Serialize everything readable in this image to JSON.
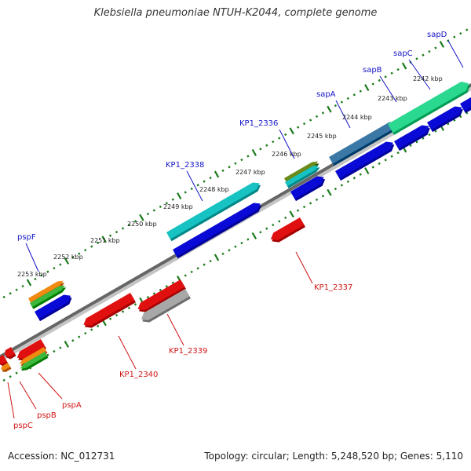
{
  "title": "Klebsiella pneumoniae NTUH-K2044, complete genome",
  "footer": {
    "accession": "Accession: NC_012731",
    "summary": "Topology: circular; Length: 5,248,520 bp; Genes: 5,110"
  },
  "ticks": [
    "2242 kbp",
    "2243 kbp",
    "2244 kbp",
    "2245 kbp",
    "2246 kbp",
    "2247 kbp",
    "2248 kbp",
    "2249 kbp",
    "2250 kbp",
    "2251 kbp",
    "2252 kbp",
    "2253 kbp"
  ],
  "colors": {
    "plus_label": "#1515c8",
    "minus_label": "#d01515",
    "cds_blue": "#0a0ad6",
    "cds_red": "#e01010",
    "cds_gray": "#a8a8a8",
    "backbone": "#666666",
    "tick": "#1a7a1a",
    "teal": "#17c2c2",
    "mint": "#2ad890",
    "steelblue": "#3c78a6",
    "olive": "#6a8a1a",
    "orange": "#f08a10",
    "green": "#3cb83c"
  },
  "features_plus": [
    {
      "label": "sapD"
    },
    {
      "label": "sapC"
    },
    {
      "label": "sapB"
    },
    {
      "label": "sapA"
    },
    {
      "label": "KP1_2336"
    },
    {
      "label": "KP1_2338"
    },
    {
      "label": "pspF"
    }
  ],
  "features_minus": [
    {
      "label": "KP1_2337"
    },
    {
      "label": "KP1_2339"
    },
    {
      "label": "KP1_2340"
    },
    {
      "label": "pspA"
    },
    {
      "label": "pspB"
    },
    {
      "label": "pspC"
    }
  ]
}
